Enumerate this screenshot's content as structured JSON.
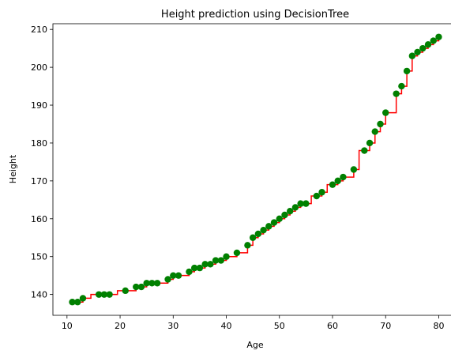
{
  "chart_data": {
    "type": "scatter",
    "title": "Height prediction using DecisionTree",
    "xlabel": "Age",
    "ylabel": "Height",
    "xlim": [
      7.35,
      83.65
    ],
    "ylim": [
      134.5,
      211.5
    ],
    "xticks": [
      10,
      20,
      30,
      40,
      50,
      60,
      70,
      80
    ],
    "yticks": [
      140,
      150,
      160,
      170,
      180,
      190,
      200,
      210
    ],
    "grid": false,
    "colors": {
      "points": "#008000",
      "prediction": "#ff0000"
    },
    "series": [
      {
        "kind": "points",
        "x": [
          11,
          12,
          13,
          16,
          17,
          18,
          21,
          23,
          24,
          25,
          26,
          27,
          29,
          30,
          31,
          33,
          34,
          35,
          36,
          37,
          38,
          39,
          40,
          42,
          44,
          45,
          46,
          47,
          48,
          49,
          50,
          51,
          52,
          53,
          54,
          55,
          57,
          58,
          60,
          61,
          62,
          64,
          66,
          67,
          68,
          69,
          70,
          72,
          73,
          74,
          75,
          76,
          77,
          78,
          79,
          80
        ],
        "y": [
          138,
          138,
          139,
          140,
          140,
          140,
          141,
          142,
          142,
          143,
          143,
          143,
          144,
          145,
          145,
          146,
          147,
          147,
          148,
          148,
          149,
          149,
          150,
          151,
          153,
          155,
          156,
          157,
          158,
          159,
          160,
          161,
          162,
          163,
          164,
          164,
          166,
          167,
          169,
          170,
          171,
          173,
          178,
          180,
          183,
          185,
          188,
          193,
          195,
          199,
          203,
          204,
          205,
          206,
          207,
          208
        ]
      },
      {
        "kind": "step",
        "x": [
          11,
          11.5,
          12,
          12.5,
          13,
          14.5,
          16,
          16.5,
          17,
          17.5,
          18,
          19.5,
          21,
          22,
          23,
          23.5,
          24,
          24.5,
          25,
          25.5,
          26,
          26.5,
          27,
          28,
          29,
          29.5,
          30,
          30.5,
          31,
          32,
          33,
          33.5,
          34,
          34.5,
          35,
          35.5,
          36,
          36.5,
          37,
          37.5,
          38,
          38.5,
          39,
          39.5,
          40,
          41,
          42,
          43,
          44,
          44.5,
          45,
          45.5,
          46,
          46.5,
          47,
          47.5,
          48,
          48.5,
          49,
          49.5,
          50,
          50.5,
          51,
          51.5,
          52,
          52.5,
          53,
          53.5,
          54,
          54.5,
          55,
          56,
          57,
          57.5,
          58,
          59,
          60,
          60.5,
          61,
          61.5,
          62,
          63,
          64,
          65,
          66,
          66.5,
          67,
          67.5,
          68,
          68.5,
          69,
          69.5,
          70,
          71,
          72,
          72.5,
          73,
          73.5,
          74,
          74.5,
          75,
          75.5,
          76,
          76.5,
          77,
          77.5,
          78,
          78.5,
          79,
          79.5,
          80
        ],
        "y": [
          138,
          138,
          138,
          138,
          139,
          140,
          140,
          140,
          140,
          140,
          140,
          141,
          141,
          141,
          142,
          142,
          142,
          142,
          143,
          143,
          143,
          143,
          143,
          143,
          144,
          144,
          145,
          145,
          145,
          145,
          146,
          146,
          147,
          147,
          147,
          147,
          148,
          148,
          148,
          148,
          149,
          149,
          149,
          149,
          150,
          150,
          151,
          151,
          153,
          153,
          155,
          155,
          156,
          156,
          157,
          157,
          158,
          158,
          159,
          159,
          160,
          160,
          161,
          161,
          162,
          162,
          163,
          163,
          164,
          164,
          164,
          166,
          166,
          166,
          167,
          169,
          169,
          169,
          170,
          170,
          171,
          171,
          173,
          178,
          178,
          178,
          180,
          180,
          183,
          183,
          185,
          185,
          188,
          188,
          193,
          193,
          195,
          195,
          199,
          199,
          203,
          203,
          204,
          204,
          205,
          205,
          206,
          206,
          207,
          207,
          208
        ]
      }
    ]
  }
}
